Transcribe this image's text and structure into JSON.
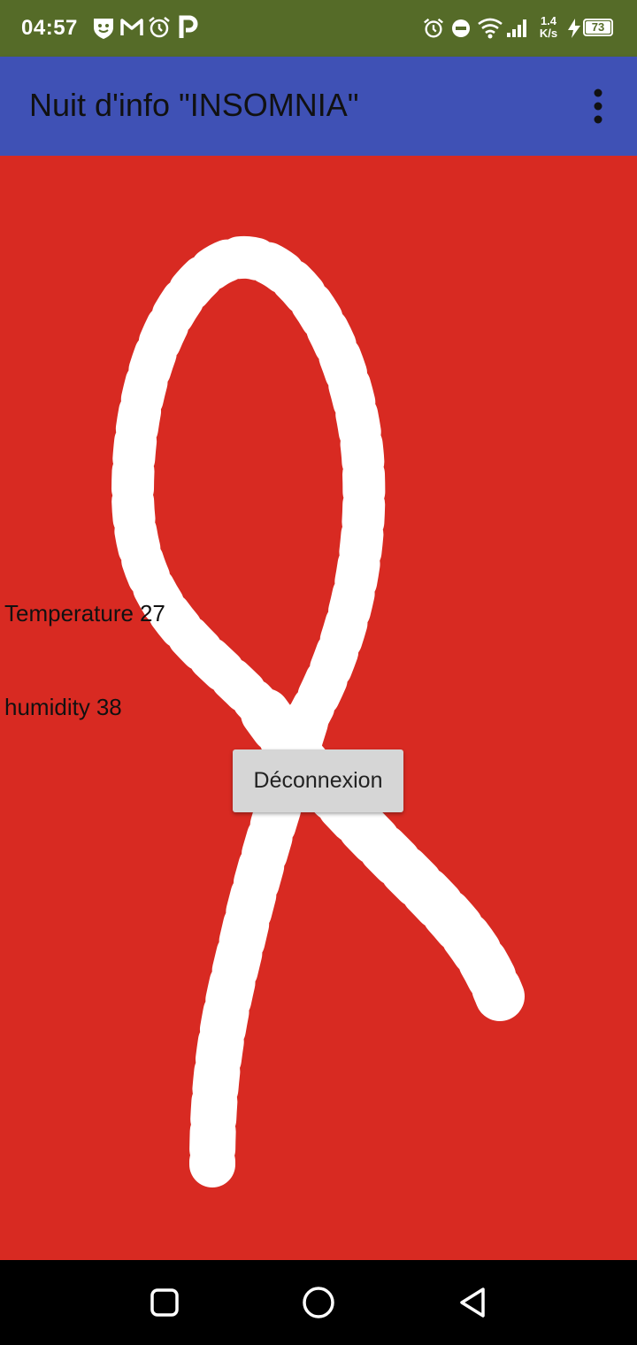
{
  "status_bar": {
    "time": "04:57",
    "net_speed_value": "1.4",
    "net_speed_unit": "K/s",
    "battery": "73",
    "icons": [
      "shield-face-icon",
      "gmail-icon",
      "alarm-icon",
      "parking-icon",
      "alarm-icon",
      "do-not-disturb-icon",
      "wifi-icon",
      "signal-icon",
      "charging-icon",
      "battery-icon"
    ]
  },
  "app_bar": {
    "title": "Nuit d'info \"INSOMNIA\"",
    "menu_icon": "more-vert-icon"
  },
  "sensors": {
    "temperature_label": "Temperature",
    "temperature_value": "27",
    "humidity_label": "humidity",
    "humidity_value": "38"
  },
  "actions": {
    "logout_label": "Déconnexion"
  },
  "nav_bar": {
    "icons": [
      "recents-square-icon",
      "home-circle-icon",
      "back-triangle-icon"
    ]
  },
  "colors": {
    "status_bar": "#556b28",
    "app_bar": "#3f51b5",
    "background": "#d82a22",
    "ribbon": "#ffffff",
    "button": "#d6d6d6",
    "nav_bar": "#000000"
  }
}
